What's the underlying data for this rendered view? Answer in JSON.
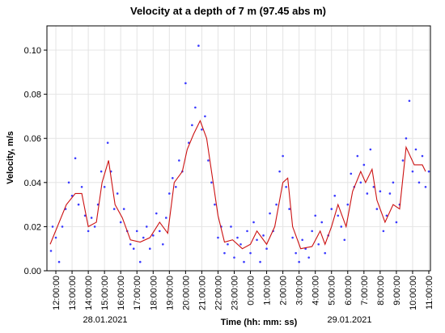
{
  "chart_data": {
    "type": "scatter",
    "title": "Velocity at a depth of 7 m (97.45 abs m)",
    "x_label": "Time (hh: mm: ss)",
    "y_label": "Velocity, m/s",
    "annotations": [
      "28.01.2021",
      "29.01.2021"
    ],
    "grid": true,
    "xlim": [
      -0.55,
      23.1
    ],
    "ylim": [
      0,
      0.111
    ],
    "yticks": [
      {
        "value": 0,
        "label": "0.00"
      },
      {
        "value": 0.02,
        "label": "0.02"
      },
      {
        "value": 0.04,
        "label": "0.04"
      },
      {
        "value": 0.06,
        "label": "0.06"
      },
      {
        "value": 0.08,
        "label": "0.08"
      },
      {
        "value": 0.1,
        "label": "0.10"
      }
    ],
    "xticks": [
      {
        "value": 0,
        "label": "12:00:00"
      },
      {
        "value": 1,
        "label": "13:00:00"
      },
      {
        "value": 2,
        "label": "14:00:00"
      },
      {
        "value": 3,
        "label": "15:00:00"
      },
      {
        "value": 4,
        "label": "16:00:00"
      },
      {
        "value": 5,
        "label": "17:00:00"
      },
      {
        "value": 6,
        "label": "18:00:00"
      },
      {
        "value": 7,
        "label": "19:00:00"
      },
      {
        "value": 8,
        "label": "20:00:00"
      },
      {
        "value": 9,
        "label": "21:00:00"
      },
      {
        "value": 10,
        "label": "22:00:00"
      },
      {
        "value": 11,
        "label": "23:00:00"
      },
      {
        "value": 12,
        "label": "0:00:00"
      },
      {
        "value": 13,
        "label": "1:00:00"
      },
      {
        "value": 14,
        "label": "2:00:00"
      },
      {
        "value": 15,
        "label": "3:00:00"
      },
      {
        "value": 16,
        "label": "4:00:00"
      },
      {
        "value": 17,
        "label": "5:00:00"
      },
      {
        "value": 18,
        "label": "6:00:00"
      },
      {
        "value": 19,
        "label": "7:00:00"
      },
      {
        "value": 20,
        "label": "8:00:00"
      },
      {
        "value": 21,
        "label": "9:00:00"
      },
      {
        "value": 22,
        "label": "10:00:00"
      },
      {
        "value": 23,
        "label": "11:00:00"
      }
    ],
    "series": [
      {
        "type": "scatter",
        "color": "#3a3aff",
        "x": [
          -0.3,
          -0.2,
          0,
          0.2,
          0.4,
          0.6,
          0.8,
          1.0,
          1.2,
          1.4,
          1.6,
          1.8,
          2.0,
          2.2,
          2.4,
          2.6,
          2.8,
          3.0,
          3.2,
          3.4,
          3.6,
          3.8,
          4.0,
          4.2,
          4.4,
          4.6,
          4.8,
          5.0,
          5.2,
          5.4,
          5.6,
          5.8,
          6.0,
          6.2,
          6.4,
          6.6,
          6.8,
          7.0,
          7.2,
          7.4,
          7.6,
          7.8,
          8.0,
          8.2,
          8.4,
          8.6,
          8.8,
          9.0,
          9.2,
          9.4,
          9.6,
          9.8,
          10.0,
          10.2,
          10.4,
          10.6,
          10.8,
          11.0,
          11.2,
          11.4,
          11.6,
          11.8,
          12.0,
          12.2,
          12.4,
          12.6,
          12.8,
          13.0,
          13.2,
          13.4,
          13.6,
          13.8,
          14.0,
          14.2,
          14.4,
          14.6,
          14.8,
          15.0,
          15.2,
          15.4,
          15.6,
          15.8,
          16.0,
          16.2,
          16.4,
          16.6,
          16.8,
          17.0,
          17.2,
          17.4,
          17.6,
          17.8,
          18.0,
          18.2,
          18.4,
          18.6,
          18.8,
          19.0,
          19.2,
          19.4,
          19.6,
          19.8,
          20.0,
          20.2,
          20.4,
          20.6,
          20.8,
          21.0,
          21.2,
          21.4,
          21.6,
          21.8,
          22.0,
          22.2,
          22.4,
          22.6,
          22.8,
          23.0
        ],
        "values": [
          0.009,
          0.02,
          0.015,
          0.004,
          0.02,
          0.028,
          0.04,
          0.034,
          0.051,
          0.03,
          0.038,
          0.025,
          0.018,
          0.024,
          0.02,
          0.03,
          0.045,
          0.038,
          0.058,
          0.045,
          0.028,
          0.035,
          0.022,
          0.028,
          0.018,
          0.012,
          0.01,
          0.018,
          0.004,
          0.015,
          0.02,
          0.01,
          0.016,
          0.026,
          0.018,
          0.012,
          0.024,
          0.035,
          0.042,
          0.038,
          0.05,
          0.045,
          0.085,
          0.058,
          0.066,
          0.074,
          0.102,
          0.064,
          0.07,
          0.05,
          0.04,
          0.03,
          0.015,
          0.02,
          0.008,
          0.012,
          0.02,
          0.006,
          0.015,
          0.012,
          0.004,
          0.018,
          0.008,
          0.022,
          0.014,
          0.004,
          0.016,
          0.01,
          0.026,
          0.018,
          0.03,
          0.045,
          0.052,
          0.038,
          0.028,
          0.015,
          0.008,
          0.004,
          0.014,
          0.01,
          0.006,
          0.018,
          0.025,
          0.012,
          0.022,
          0.008,
          0.016,
          0.028,
          0.034,
          0.025,
          0.02,
          0.014,
          0.03,
          0.044,
          0.038,
          0.052,
          0.04,
          0.048,
          0.035,
          0.055,
          0.038,
          0.028,
          0.036,
          0.018,
          0.025,
          0.035,
          0.04,
          0.022,
          0.03,
          0.05,
          0.06,
          0.077,
          0.045,
          0.055,
          0.04,
          0.052,
          0.038,
          0.045
        ]
      },
      {
        "type": "line",
        "color": "#cc1111",
        "x": [
          -0.35,
          0.65,
          1.2,
          1.6,
          2.0,
          2.5,
          2.85,
          3.25,
          3.65,
          4.1,
          4.6,
          5.2,
          5.8,
          6.4,
          6.9,
          7.3,
          7.8,
          8.1,
          8.5,
          8.9,
          9.3,
          9.6,
          10.0,
          10.4,
          10.9,
          11.5,
          12.0,
          12.4,
          13.0,
          13.5,
          14.0,
          14.3,
          14.6,
          15.1,
          15.8,
          16.3,
          16.6,
          17.0,
          17.4,
          17.9,
          18.3,
          18.8,
          19.1,
          19.5,
          19.8,
          20.3,
          20.8,
          21.2,
          21.6,
          22.1,
          22.6,
          22.8
        ],
        "values": [
          0.012,
          0.03,
          0.035,
          0.035,
          0.02,
          0.022,
          0.04,
          0.05,
          0.03,
          0.024,
          0.014,
          0.013,
          0.015,
          0.022,
          0.017,
          0.04,
          0.045,
          0.055,
          0.062,
          0.068,
          0.06,
          0.045,
          0.025,
          0.013,
          0.014,
          0.01,
          0.012,
          0.018,
          0.012,
          0.02,
          0.04,
          0.042,
          0.02,
          0.01,
          0.011,
          0.018,
          0.012,
          0.02,
          0.03,
          0.02,
          0.036,
          0.045,
          0.04,
          0.046,
          0.032,
          0.022,
          0.03,
          0.028,
          0.056,
          0.048,
          0.048,
          0.045
        ]
      }
    ]
  }
}
